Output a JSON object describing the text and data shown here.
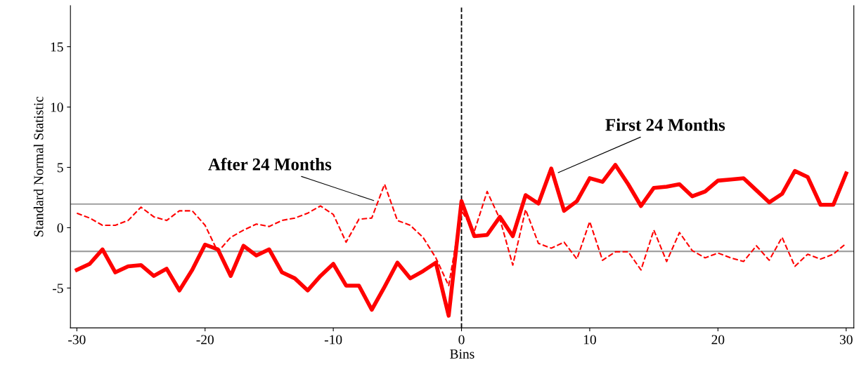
{
  "chart_data": {
    "type": "line",
    "xlabel": "Bins",
    "ylabel": "Standard Normal Statistic",
    "x": [
      -30,
      -29,
      -28,
      -27,
      -26,
      -25,
      -24,
      -23,
      -22,
      -21,
      -20,
      -19,
      -18,
      -17,
      -16,
      -15,
      -14,
      -13,
      -12,
      -11,
      -10,
      -9,
      -8,
      -7,
      -6,
      -5,
      -4,
      -3,
      -2,
      -1,
      0,
      1,
      2,
      3,
      4,
      5,
      6,
      7,
      8,
      9,
      10,
      11,
      12,
      13,
      14,
      15,
      16,
      17,
      18,
      19,
      20,
      21,
      22,
      23,
      24,
      25,
      26,
      27,
      28,
      29,
      30
    ],
    "series": [
      {
        "color": "#ff0000",
        "line_style": "solid",
        "values": [
          -3.5,
          -3.0,
          -1.8,
          -3.7,
          -3.2,
          -3.1,
          -4.0,
          -3.4,
          -5.2,
          -3.5,
          -1.4,
          -1.8,
          -4.0,
          -1.5,
          -2.3,
          -1.8,
          -3.7,
          -4.2,
          -5.2,
          -4.0,
          -3.0,
          -4.8,
          -4.8,
          -6.8,
          -4.9,
          -2.9,
          -4.2,
          -3.6,
          -2.9,
          -7.3,
          2.2,
          -0.7,
          -0.6,
          0.9,
          -0.7,
          2.7,
          2.0,
          4.9,
          1.4,
          2.2,
          4.1,
          3.8,
          5.2,
          3.6,
          1.8,
          3.3,
          3.4,
          3.6,
          2.6,
          3.0,
          3.9,
          4.0,
          4.1,
          3.1,
          2.1,
          2.8,
          4.7,
          4.2,
          1.9,
          1.9,
          4.5
        ]
      },
      {
        "color": "#ff0000",
        "line_style": "dashed",
        "values": [
          1.2,
          0.8,
          0.2,
          0.2,
          0.6,
          1.7,
          0.9,
          0.6,
          1.4,
          1.4,
          0.2,
          -2.0,
          -0.8,
          -0.2,
          0.3,
          0.1,
          0.6,
          0.8,
          1.2,
          1.8,
          1.1,
          -1.2,
          0.7,
          0.8,
          3.6,
          0.6,
          0.2,
          -0.8,
          -2.5,
          -4.8,
          1.4,
          -0.3,
          3.0,
          0.7,
          -3.1,
          1.5,
          -1.3,
          -1.7,
          -1.2,
          -2.6,
          0.5,
          -2.7,
          -2.0,
          -2.0,
          -3.5,
          -0.2,
          -2.8,
          -0.4,
          -1.9,
          -2.5,
          -2.1,
          -2.5,
          -2.8,
          -1.5,
          -2.7,
          -0.8,
          -3.2,
          -2.2,
          -2.6,
          -2.2,
          -1.3
        ]
      }
    ],
    "xlim": [
      -30.5,
      30.6
    ],
    "ylim": [
      -8.3,
      18.4
    ],
    "xticks": [
      -30,
      -20,
      -10,
      0,
      10,
      20,
      30
    ],
    "yticks": [
      -5,
      0,
      5,
      10,
      15
    ],
    "ref_lines": [
      {
        "axis": "y",
        "value": 1.96,
        "color": "#a0a0a0",
        "line_style": "solid"
      },
      {
        "axis": "y",
        "value": -1.96,
        "color": "#a0a0a0",
        "line_style": "solid"
      },
      {
        "axis": "x",
        "value": 0,
        "color": "#000000",
        "line_style": "dashed"
      }
    ],
    "annotations": [
      {
        "text": "After 24 Months",
        "x": -6.7,
        "y": 2.2
      },
      {
        "text": "First 24 Months",
        "x": 7.4,
        "y": 4.5
      }
    ],
    "grid": false,
    "legend": false
  }
}
